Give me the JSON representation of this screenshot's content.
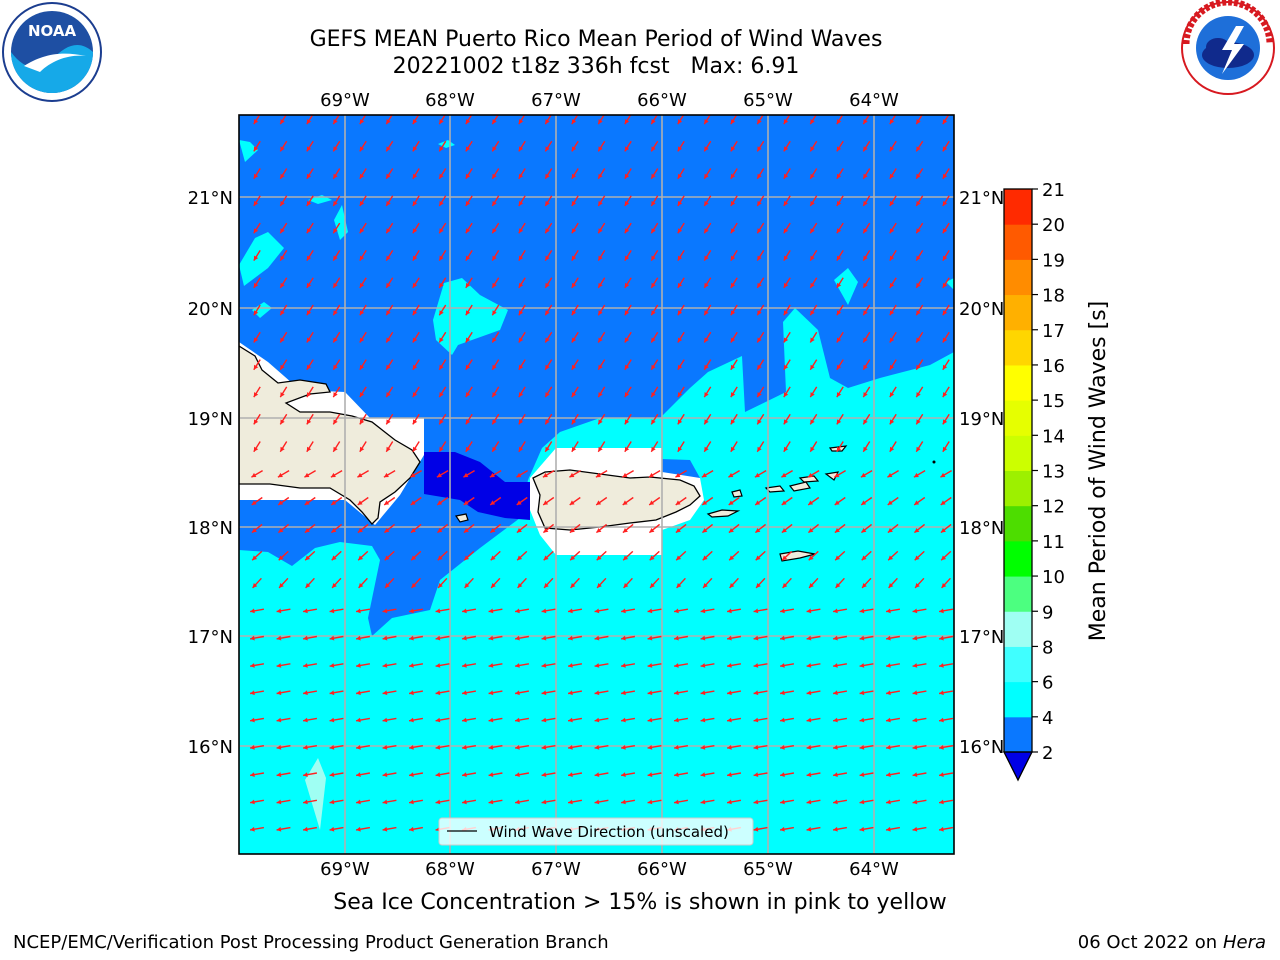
{
  "header": {
    "title_line1": "GEFS MEAN Puerto Rico Mean Period of Wind Waves",
    "title_line2": "20221002 t18z 336h fcst   Max: 6.91"
  },
  "logos": {
    "left": {
      "name": "noaa-logo",
      "text": "NOAA"
    },
    "right": {
      "name": "national-weather-service-logo"
    }
  },
  "map": {
    "lon_labels": [
      "69°W",
      "68°W",
      "67°W",
      "66°W",
      "65°W",
      "64°W"
    ],
    "lat_labels": [
      "21°N",
      "20°N",
      "19°N",
      "18°N",
      "17°N",
      "16°N"
    ],
    "legend_label": "Wind Wave Direction (unscaled)",
    "arrow_color": "#ff2020",
    "land_color": "#efecdc",
    "field_colors": {
      "2-4": "#0a78ff",
      "4-6": "#00ffff",
      "below-2": "#0000e6"
    }
  },
  "colorbar": {
    "label": "Mean Period of Wind Waves [s]",
    "ticks": [
      "2",
      "4",
      "6",
      "8",
      "9",
      "10",
      "11",
      "12",
      "13",
      "14",
      "15",
      "16",
      "17",
      "18",
      "19",
      "20",
      "21"
    ],
    "colors": [
      "#0a78ff",
      "#00ffff",
      "#40ffff",
      "#9ffff3",
      "#4cff80",
      "#00ff00",
      "#4ddd00",
      "#9df000",
      "#ccff00",
      "#e6ff00",
      "#ffff00",
      "#ffd600",
      "#ffb000",
      "#ff8c00",
      "#ff5a00",
      "#ff2a00"
    ],
    "extend_color": "#0000e6"
  },
  "note": "Sea Ice Concentration > 15% is shown in pink to yellow",
  "footer": {
    "left": "NCEP/EMC/Verification Post Processing Product Generation Branch",
    "date": "06 Oct 2022 on ",
    "host": "Hera"
  }
}
